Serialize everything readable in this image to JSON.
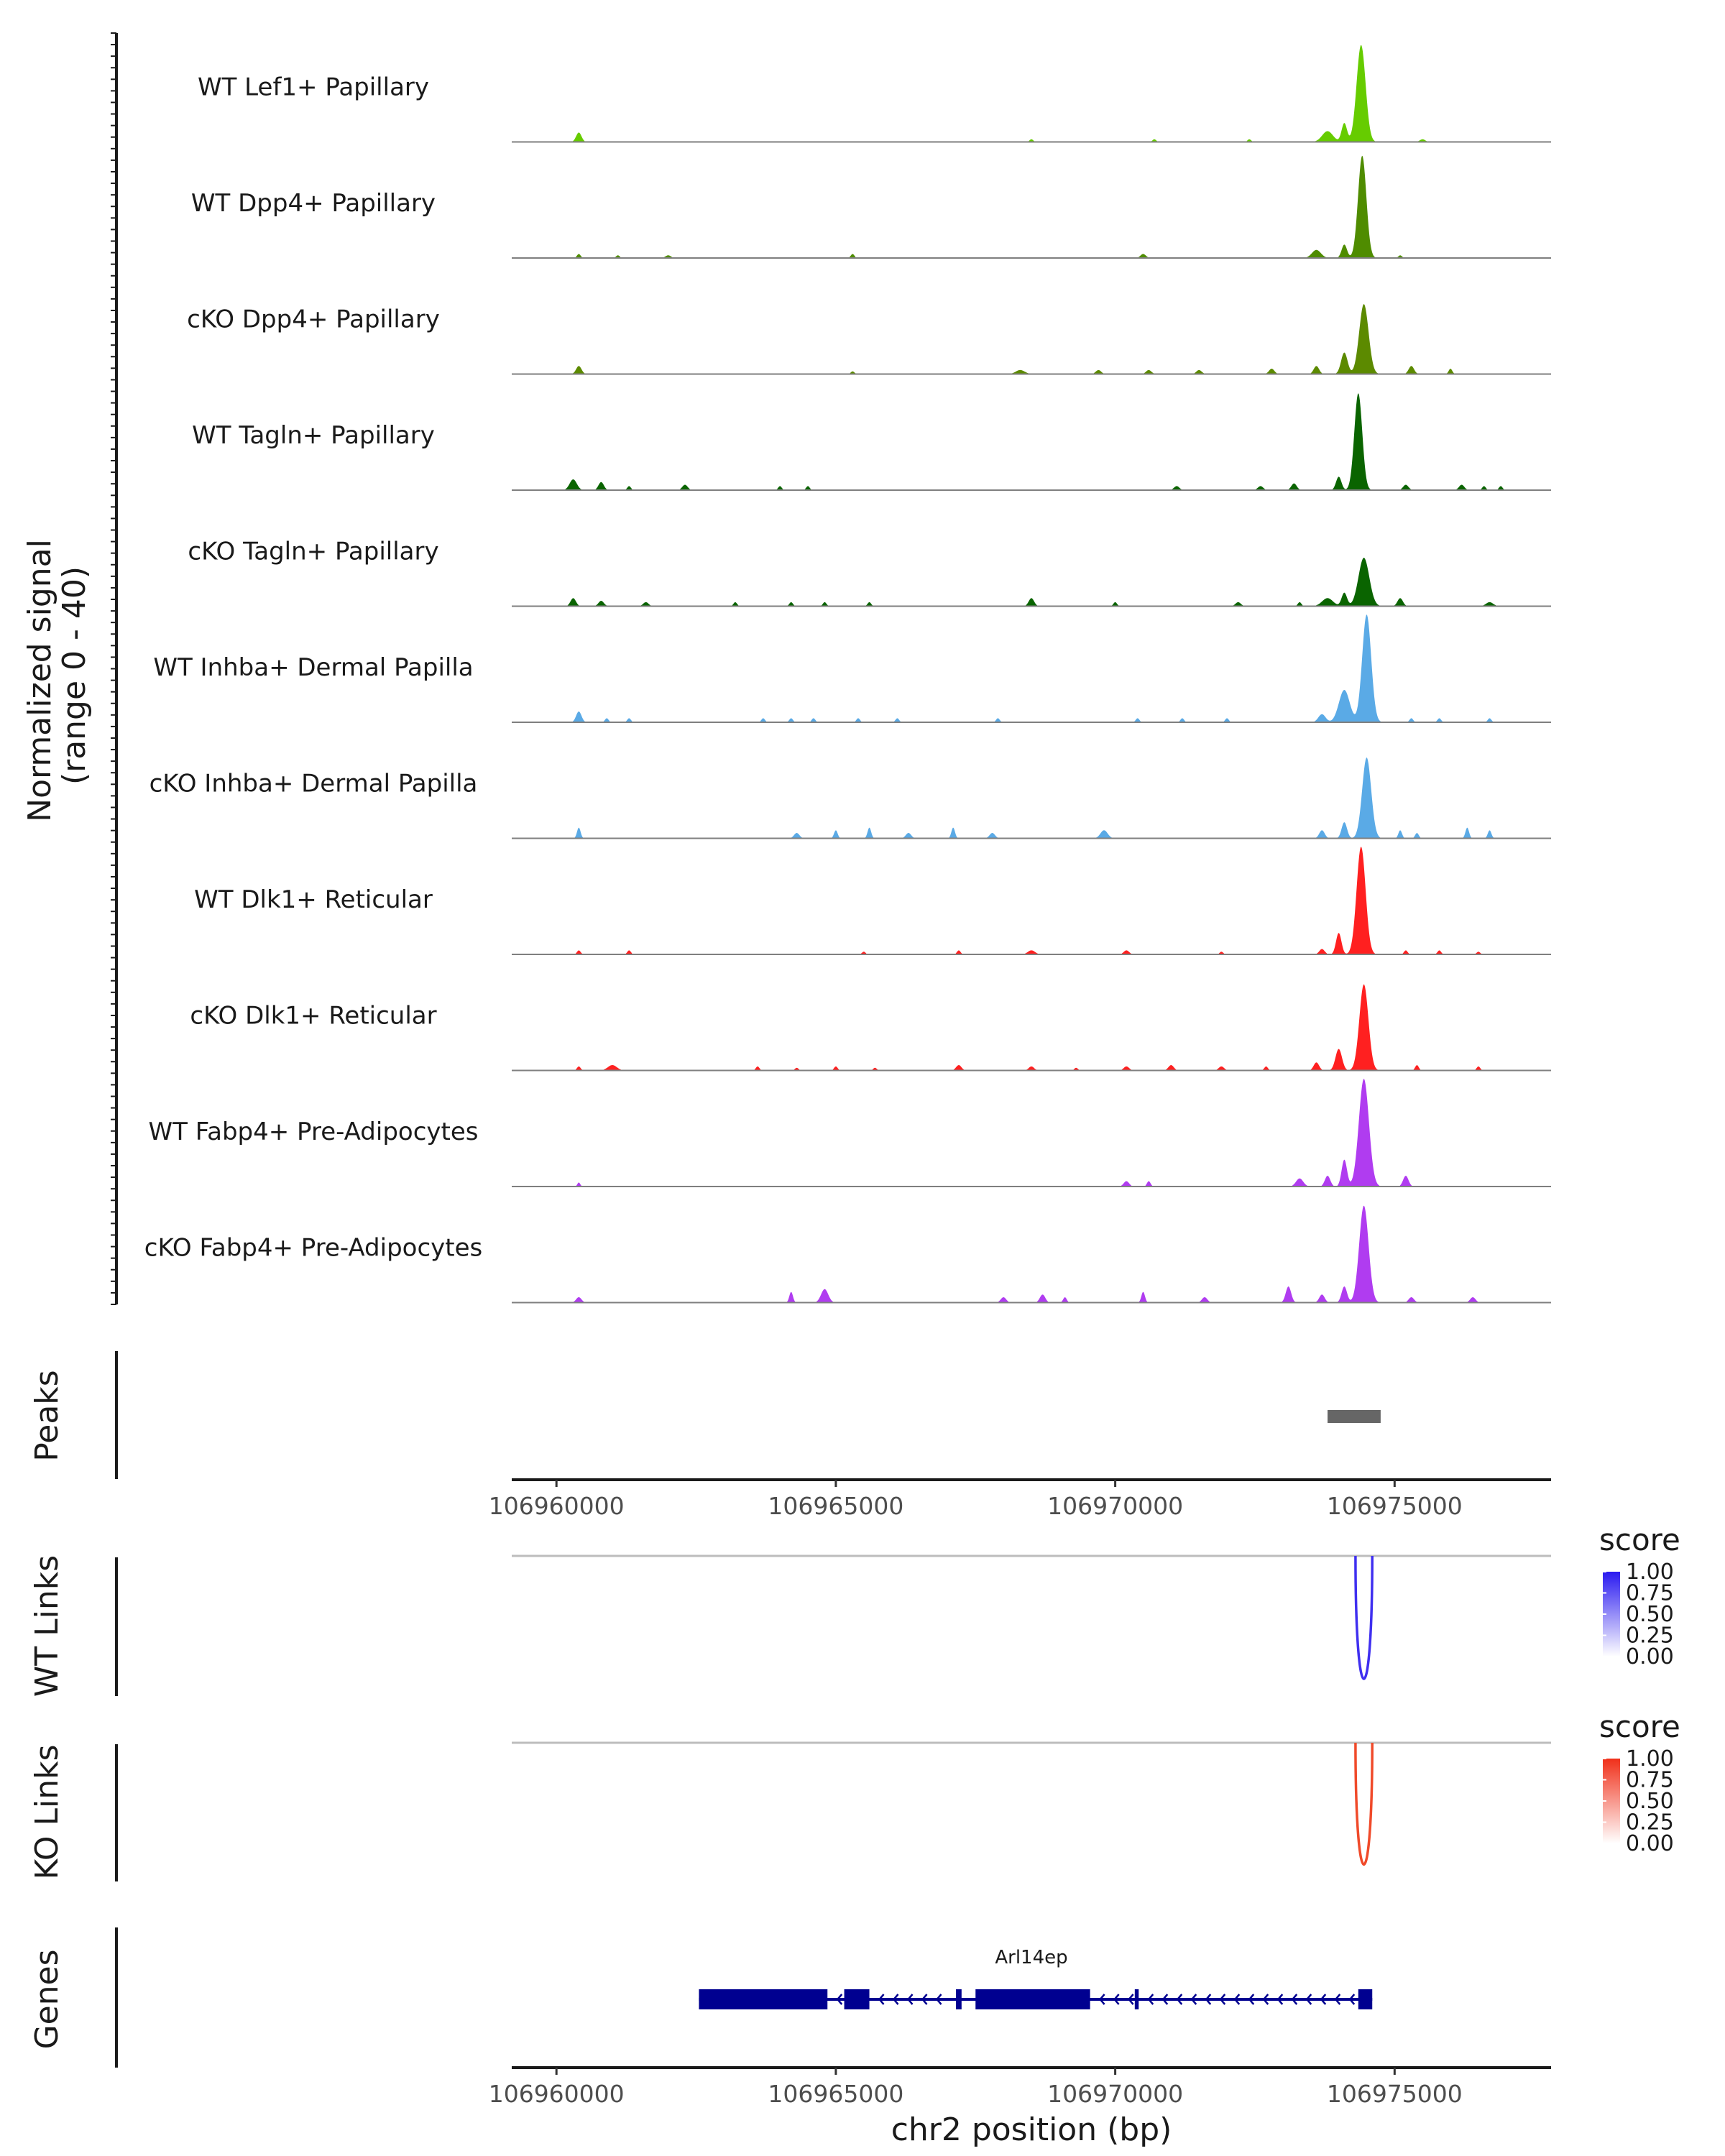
{
  "chart_data": {
    "type": "area",
    "title": "",
    "xlabel": "chr2 position (bp)",
    "ylabel": "Normalized signal\n(range 0 - 40)",
    "ylabel_line1": "Normalized signal",
    "ylabel_line2": "(range 0 - 40)",
    "ylim": [
      0,
      40
    ],
    "xlim": [
      106959200,
      106977800
    ],
    "x_ticks": [
      106960000,
      106965000,
      106970000,
      106975000
    ],
    "x_tick_labels": [
      "106960000",
      "106965000",
      "106970000",
      "106975000"
    ],
    "coverage_tracks": [
      {
        "name": "WT Lef1+ Papillary",
        "color": "#66CC00",
        "peaks": [
          [
            106960400,
            3.5,
            150
          ],
          [
            106973800,
            4,
            300
          ],
          [
            106974100,
            7,
            150
          ],
          [
            106974400,
            36,
            250
          ],
          [
            106968500,
            1,
            100
          ],
          [
            106970700,
            1,
            100
          ],
          [
            106972400,
            1,
            100
          ],
          [
            106975500,
            1,
            150
          ]
        ]
      },
      {
        "name": "WT Dpp4+ Papillary",
        "color": "#4F8C00",
        "peaks": [
          [
            106960400,
            1.5,
            100
          ],
          [
            106961100,
            1,
            100
          ],
          [
            106962000,
            1,
            150
          ],
          [
            106965300,
            1.5,
            100
          ],
          [
            106970500,
            1.5,
            150
          ],
          [
            106973600,
            3,
            250
          ],
          [
            106974100,
            5,
            150
          ],
          [
            106974420,
            38,
            230
          ],
          [
            106975100,
            1,
            100
          ]
        ]
      },
      {
        "name": "cKO Dpp4+ Papillary",
        "color": "#5C8A00",
        "peaks": [
          [
            106960400,
            3,
            150
          ],
          [
            106965300,
            1,
            100
          ],
          [
            106968300,
            1.5,
            250
          ],
          [
            106969700,
            1.5,
            150
          ],
          [
            106970600,
            1.5,
            150
          ],
          [
            106971500,
            1.5,
            150
          ],
          [
            106972800,
            2,
            150
          ],
          [
            106973600,
            3,
            150
          ],
          [
            106974100,
            8,
            180
          ],
          [
            106974450,
            26,
            260
          ],
          [
            106975300,
            3,
            150
          ],
          [
            106976000,
            2,
            100
          ]
        ]
      },
      {
        "name": "WT Tagln+ Papillary",
        "color": "#0A6400",
        "peaks": [
          [
            106960300,
            4,
            200
          ],
          [
            106960800,
            3,
            150
          ],
          [
            106961300,
            1.5,
            100
          ],
          [
            106962300,
            2,
            150
          ],
          [
            106964000,
            1.5,
            100
          ],
          [
            106964500,
            1.5,
            100
          ],
          [
            106971100,
            1.5,
            150
          ],
          [
            106972600,
            1.5,
            150
          ],
          [
            106973200,
            2.5,
            150
          ],
          [
            106974000,
            5,
            150
          ],
          [
            106974350,
            36,
            220
          ],
          [
            106975200,
            2,
            150
          ],
          [
            106976200,
            2,
            150
          ],
          [
            106976600,
            1.5,
            100
          ],
          [
            106976900,
            1.5,
            100
          ]
        ]
      },
      {
        "name": "cKO Tagln+ Papillary",
        "color": "#0A6400",
        "peaks": [
          [
            106960300,
            3,
            150
          ],
          [
            106960800,
            2,
            150
          ],
          [
            106961600,
            1.5,
            150
          ],
          [
            106963200,
            1.5,
            100
          ],
          [
            106964200,
            1.5,
            100
          ],
          [
            106964800,
            1.5,
            100
          ],
          [
            106965600,
            1.5,
            100
          ],
          [
            106968500,
            3,
            150
          ],
          [
            106970000,
            1.5,
            100
          ],
          [
            106972200,
            1.5,
            150
          ],
          [
            106973300,
            1.5,
            100
          ],
          [
            106973800,
            3,
            300
          ],
          [
            106974100,
            5,
            150
          ],
          [
            106974450,
            18,
            300
          ],
          [
            106975100,
            3,
            150
          ],
          [
            106976700,
            1.5,
            200
          ]
        ]
      },
      {
        "name": "WT Inhba+ Dermal Papilla",
        "color": "#5AAAE6",
        "peaks": [
          [
            106960400,
            4,
            150
          ],
          [
            106960900,
            1.5,
            100
          ],
          [
            106961300,
            1.5,
            100
          ],
          [
            106963700,
            1.5,
            100
          ],
          [
            106964200,
            1.5,
            100
          ],
          [
            106964600,
            1.5,
            100
          ],
          [
            106965400,
            1.5,
            100
          ],
          [
            106966100,
            1.5,
            100
          ],
          [
            106967900,
            1.5,
            100
          ],
          [
            106970400,
            1.5,
            100
          ],
          [
            106971200,
            1.5,
            100
          ],
          [
            106972000,
            1.5,
            100
          ],
          [
            106973700,
            3,
            200
          ],
          [
            106974100,
            12,
            300
          ],
          [
            106974500,
            40,
            250
          ],
          [
            106975300,
            1.5,
            100
          ],
          [
            106975800,
            1.5,
            100
          ],
          [
            106976700,
            1.5,
            100
          ]
        ]
      },
      {
        "name": "cKO Inhba+ Dermal Papilla",
        "color": "#5AAAE6",
        "peaks": [
          [
            106960400,
            4,
            100
          ],
          [
            106964300,
            2,
            150
          ],
          [
            106965000,
            3,
            100
          ],
          [
            106965600,
            4,
            100
          ],
          [
            106966300,
            2,
            150
          ],
          [
            106967100,
            4,
            100
          ],
          [
            106967800,
            2,
            150
          ],
          [
            106969800,
            3,
            200
          ],
          [
            106973700,
            3,
            150
          ],
          [
            106974100,
            6,
            150
          ],
          [
            106974500,
            30,
            250
          ],
          [
            106975100,
            3,
            100
          ],
          [
            106975400,
            2,
            100
          ],
          [
            106976300,
            4,
            100
          ],
          [
            106976700,
            3,
            100
          ]
        ]
      },
      {
        "name": "WT Dlk1+ Reticular",
        "color": "#FF2020",
        "peaks": [
          [
            106960400,
            1.5,
            100
          ],
          [
            106961300,
            1.5,
            100
          ],
          [
            106965500,
            1,
            100
          ],
          [
            106967200,
            1.5,
            100
          ],
          [
            106968500,
            1.5,
            200
          ],
          [
            106970200,
            1.5,
            150
          ],
          [
            106971900,
            1,
            100
          ],
          [
            106973700,
            2,
            150
          ],
          [
            106974000,
            8,
            150
          ],
          [
            106974400,
            40,
            250
          ],
          [
            106975200,
            1.5,
            100
          ],
          [
            106975800,
            1.5,
            100
          ],
          [
            106976500,
            1,
            100
          ]
        ]
      },
      {
        "name": "cKO Dlk1+ Reticular",
        "color": "#FF2020",
        "peaks": [
          [
            106960400,
            1.5,
            100
          ],
          [
            106961000,
            2,
            250
          ],
          [
            106963600,
            1.5,
            100
          ],
          [
            106964300,
            1,
            100
          ],
          [
            106965000,
            1.5,
            100
          ],
          [
            106965700,
            1,
            100
          ],
          [
            106967200,
            2,
            150
          ],
          [
            106968500,
            1.5,
            150
          ],
          [
            106969300,
            1,
            100
          ],
          [
            106970200,
            1.5,
            150
          ],
          [
            106971000,
            2,
            150
          ],
          [
            106971900,
            1.5,
            150
          ],
          [
            106972700,
            1.5,
            100
          ],
          [
            106973600,
            3,
            150
          ],
          [
            106974000,
            8,
            180
          ],
          [
            106974450,
            32,
            250
          ],
          [
            106975400,
            2,
            100
          ],
          [
            106976500,
            1.5,
            100
          ]
        ]
      },
      {
        "name": "WT Fabp4+ Pre-Adipocytes",
        "color": "#B03CF0",
        "peaks": [
          [
            106960400,
            1.5,
            80
          ],
          [
            106970200,
            2,
            150
          ],
          [
            106970600,
            2,
            100
          ],
          [
            106973300,
            3,
            200
          ],
          [
            106973800,
            4,
            150
          ],
          [
            106974100,
            10,
            150
          ],
          [
            106974450,
            40,
            280
          ],
          [
            106975200,
            4,
            150
          ]
        ]
      },
      {
        "name": "cKO Fabp4+ Pre-Adipocytes",
        "color": "#B03CF0",
        "peaks": [
          [
            106960400,
            2,
            150
          ],
          [
            106964200,
            4,
            100
          ],
          [
            106964800,
            5,
            200
          ],
          [
            106968000,
            2,
            150
          ],
          [
            106968700,
            3,
            150
          ],
          [
            106969100,
            2,
            100
          ],
          [
            106970500,
            4,
            100
          ],
          [
            106971600,
            2,
            150
          ],
          [
            106973100,
            6,
            150
          ],
          [
            106973700,
            3,
            150
          ],
          [
            106974100,
            6,
            150
          ],
          [
            106974450,
            36,
            260
          ],
          [
            106975300,
            2,
            150
          ],
          [
            106976400,
            2,
            150
          ]
        ]
      }
    ],
    "peaks_track": {
      "label": "Peaks",
      "color": "#666666",
      "regions": [
        [
          106973800,
          106974750
        ]
      ]
    },
    "link_tracks": [
      {
        "label": "WT Links",
        "color": "#3F2FF0",
        "links": [
          [
            106974300,
            106974600,
            1.0
          ]
        ],
        "legend": {
          "title": "score",
          "low_color": "#ffffff",
          "high_color": "#2A1AF0",
          "ticks": [
            "1.00",
            "0.75",
            "0.50",
            "0.25",
            "0.00"
          ]
        }
      },
      {
        "label": "KO Links",
        "color": "#F04A2A",
        "links": [
          [
            106974300,
            106974600,
            1.0
          ]
        ],
        "legend": {
          "title": "score",
          "low_color": "#ffffff",
          "high_color": "#F0301A",
          "ticks": [
            "1.00",
            "0.75",
            "0.50",
            "0.25",
            "0.00"
          ]
        }
      }
    ],
    "genes_track": {
      "label": "Genes",
      "color": "#000090",
      "gene_name": "Arl14ep",
      "span": [
        106962550,
        106974600
      ],
      "exons": [
        [
          106962550,
          106964850
        ],
        [
          106965150,
          106965600
        ],
        [
          106967150,
          106967250
        ],
        [
          106967500,
          106969550
        ],
        [
          106970350,
          106970420
        ],
        [
          106974350,
          106974600
        ]
      ]
    }
  }
}
